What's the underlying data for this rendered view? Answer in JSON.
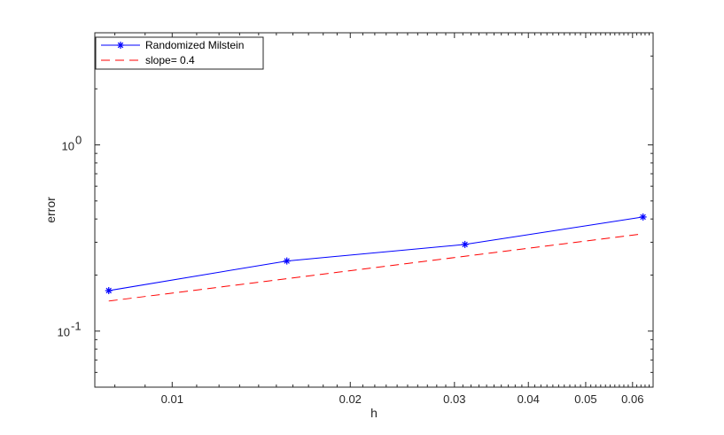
{
  "chart_data": {
    "type": "line",
    "title": "",
    "xlabel": "h",
    "ylabel": "error",
    "xscale": "log",
    "yscale": "log",
    "xlim": [
      0.0074,
      0.065
    ],
    "ylim": [
      0.05,
      4.0
    ],
    "grid": false,
    "box": true,
    "legend_position": "top-left",
    "x_ticks": [
      {
        "value": 0.01,
        "label": "0.01"
      },
      {
        "value": 0.02,
        "label": "0.02"
      },
      {
        "value": 0.03,
        "label": "0.03"
      },
      {
        "value": 0.04,
        "label": "0.04"
      },
      {
        "value": 0.05,
        "label": "0.05"
      },
      {
        "value": 0.06,
        "label": "0.06"
      }
    ],
    "y_ticks": [
      {
        "value": 0.1,
        "base": "10",
        "exp": "-1"
      },
      {
        "value": 1,
        "base": "10",
        "exp": "0"
      }
    ],
    "series": [
      {
        "name": "Randomized Milstein",
        "color": "#0000ff",
        "line_style": "solid",
        "marker": "asterisk",
        "x": [
          0.0078125,
          0.015625,
          0.03125,
          0.0625
        ],
        "y": [
          0.165,
          0.238,
          0.292,
          0.41
        ]
      },
      {
        "name": "slope= 0.4",
        "color": "#ff0000",
        "line_style": "dashed",
        "marker": "none",
        "x": [
          0.0078125,
          0.0625
        ],
        "y": [
          0.145,
          0.333
        ]
      }
    ]
  }
}
